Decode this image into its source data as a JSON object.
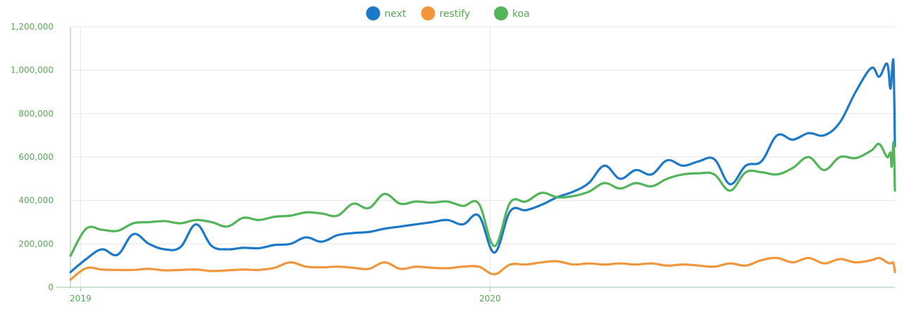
{
  "chart_data": {
    "type": "line",
    "title": "",
    "xlabel": "",
    "ylabel": "",
    "x_range": [
      "2018-12-23",
      "2020-12-27"
    ],
    "ylim": [
      0,
      1200000
    ],
    "y_ticks": [
      0,
      200000,
      400000,
      600000,
      800000,
      1000000,
      1200000
    ],
    "y_tick_labels": [
      "0",
      "200,000",
      "400,000",
      "600,000",
      "800,000",
      "1,000,000",
      "1,200,000"
    ],
    "x_ticks": [
      {
        "date": "2019-01-01",
        "label": "2019"
      },
      {
        "date": "2020-01-01",
        "label": "2020"
      }
    ],
    "grid": true,
    "legend_position": "top-center",
    "series": [
      {
        "name": "next",
        "color": "#1e78c8",
        "points": [
          [
            "2018-12-23",
            70000
          ],
          [
            "2019-01-06",
            130000
          ],
          [
            "2019-01-20",
            175000
          ],
          [
            "2019-02-03",
            150000
          ],
          [
            "2019-02-17",
            245000
          ],
          [
            "2019-03-03",
            200000
          ],
          [
            "2019-03-17",
            175000
          ],
          [
            "2019-03-31",
            185000
          ],
          [
            "2019-04-14",
            290000
          ],
          [
            "2019-04-28",
            190000
          ],
          [
            "2019-05-12",
            175000
          ],
          [
            "2019-05-26",
            182000
          ],
          [
            "2019-06-09",
            180000
          ],
          [
            "2019-06-23",
            195000
          ],
          [
            "2019-07-07",
            200000
          ],
          [
            "2019-07-21",
            230000
          ],
          [
            "2019-08-04",
            210000
          ],
          [
            "2019-08-18",
            240000
          ],
          [
            "2019-09-01",
            250000
          ],
          [
            "2019-09-15",
            255000
          ],
          [
            "2019-09-29",
            270000
          ],
          [
            "2019-10-13",
            280000
          ],
          [
            "2019-10-27",
            290000
          ],
          [
            "2019-11-10",
            300000
          ],
          [
            "2019-11-24",
            310000
          ],
          [
            "2019-12-08",
            290000
          ],
          [
            "2019-12-22",
            330000
          ],
          [
            "2020-01-05",
            160000
          ],
          [
            "2020-01-19",
            350000
          ],
          [
            "2020-02-02",
            355000
          ],
          [
            "2020-02-16",
            380000
          ],
          [
            "2020-03-01",
            415000
          ],
          [
            "2020-03-15",
            440000
          ],
          [
            "2020-03-29",
            480000
          ],
          [
            "2020-04-12",
            560000
          ],
          [
            "2020-04-26",
            500000
          ],
          [
            "2020-05-10",
            540000
          ],
          [
            "2020-05-24",
            520000
          ],
          [
            "2020-06-07",
            585000
          ],
          [
            "2020-06-21",
            560000
          ],
          [
            "2020-07-05",
            580000
          ],
          [
            "2020-07-19",
            590000
          ],
          [
            "2020-08-02",
            475000
          ],
          [
            "2020-08-16",
            560000
          ],
          [
            "2020-08-30",
            580000
          ],
          [
            "2020-09-13",
            700000
          ],
          [
            "2020-09-27",
            680000
          ],
          [
            "2020-10-11",
            710000
          ],
          [
            "2020-10-25",
            700000
          ],
          [
            "2020-11-08",
            760000
          ],
          [
            "2020-11-22",
            900000
          ],
          [
            "2020-12-06",
            1010000
          ],
          [
            "2020-12-13",
            970000
          ],
          [
            "2020-12-20",
            1030000
          ],
          [
            "2020-12-23",
            915000
          ],
          [
            "2020-12-25",
            1035000
          ],
          [
            "2020-12-26",
            1000000
          ],
          [
            "2020-12-27",
            650000
          ]
        ]
      },
      {
        "name": "restify",
        "color": "#f0963c",
        "points": [
          [
            "2018-12-23",
            35000
          ],
          [
            "2019-01-06",
            88000
          ],
          [
            "2019-01-20",
            82000
          ],
          [
            "2019-02-03",
            80000
          ],
          [
            "2019-02-17",
            80000
          ],
          [
            "2019-03-03",
            85000
          ],
          [
            "2019-03-17",
            78000
          ],
          [
            "2019-03-31",
            80000
          ],
          [
            "2019-04-14",
            82000
          ],
          [
            "2019-04-28",
            75000
          ],
          [
            "2019-05-12",
            78000
          ],
          [
            "2019-05-26",
            82000
          ],
          [
            "2019-06-09",
            80000
          ],
          [
            "2019-06-23",
            90000
          ],
          [
            "2019-07-07",
            115000
          ],
          [
            "2019-07-21",
            95000
          ],
          [
            "2019-08-04",
            92000
          ],
          [
            "2019-08-18",
            95000
          ],
          [
            "2019-09-01",
            90000
          ],
          [
            "2019-09-15",
            85000
          ],
          [
            "2019-09-29",
            115000
          ],
          [
            "2019-10-13",
            85000
          ],
          [
            "2019-10-27",
            95000
          ],
          [
            "2019-11-10",
            90000
          ],
          [
            "2019-11-24",
            88000
          ],
          [
            "2019-12-08",
            95000
          ],
          [
            "2019-12-22",
            95000
          ],
          [
            "2020-01-05",
            60000
          ],
          [
            "2020-01-19",
            105000
          ],
          [
            "2020-02-02",
            105000
          ],
          [
            "2020-02-16",
            115000
          ],
          [
            "2020-03-01",
            120000
          ],
          [
            "2020-03-15",
            105000
          ],
          [
            "2020-03-29",
            110000
          ],
          [
            "2020-04-12",
            105000
          ],
          [
            "2020-04-26",
            110000
          ],
          [
            "2020-05-10",
            105000
          ],
          [
            "2020-05-24",
            110000
          ],
          [
            "2020-06-07",
            100000
          ],
          [
            "2020-06-21",
            105000
          ],
          [
            "2020-07-05",
            100000
          ],
          [
            "2020-07-19",
            95000
          ],
          [
            "2020-08-02",
            110000
          ],
          [
            "2020-08-16",
            100000
          ],
          [
            "2020-08-30",
            125000
          ],
          [
            "2020-09-13",
            135000
          ],
          [
            "2020-09-27",
            115000
          ],
          [
            "2020-10-11",
            135000
          ],
          [
            "2020-10-25",
            110000
          ],
          [
            "2020-11-08",
            130000
          ],
          [
            "2020-11-22",
            115000
          ],
          [
            "2020-12-06",
            125000
          ],
          [
            "2020-12-13",
            135000
          ],
          [
            "2020-12-20",
            115000
          ],
          [
            "2020-12-23",
            110000
          ],
          [
            "2020-12-25",
            115000
          ],
          [
            "2020-12-26",
            105000
          ],
          [
            "2020-12-27",
            70000
          ]
        ]
      },
      {
        "name": "koa",
        "color": "#54b45a",
        "points": [
          [
            "2018-12-23",
            145000
          ],
          [
            "2019-01-06",
            270000
          ],
          [
            "2019-01-20",
            265000
          ],
          [
            "2019-02-03",
            260000
          ],
          [
            "2019-02-17",
            295000
          ],
          [
            "2019-03-03",
            300000
          ],
          [
            "2019-03-17",
            305000
          ],
          [
            "2019-03-31",
            295000
          ],
          [
            "2019-04-14",
            310000
          ],
          [
            "2019-04-28",
            300000
          ],
          [
            "2019-05-12",
            280000
          ],
          [
            "2019-05-26",
            320000
          ],
          [
            "2019-06-09",
            310000
          ],
          [
            "2019-06-23",
            325000
          ],
          [
            "2019-07-07",
            330000
          ],
          [
            "2019-07-21",
            345000
          ],
          [
            "2019-08-04",
            340000
          ],
          [
            "2019-08-18",
            330000
          ],
          [
            "2019-09-01",
            385000
          ],
          [
            "2019-09-15",
            365000
          ],
          [
            "2019-09-29",
            430000
          ],
          [
            "2019-10-13",
            385000
          ],
          [
            "2019-10-27",
            395000
          ],
          [
            "2019-11-10",
            390000
          ],
          [
            "2019-11-24",
            395000
          ],
          [
            "2019-12-08",
            375000
          ],
          [
            "2019-12-22",
            385000
          ],
          [
            "2020-01-05",
            190000
          ],
          [
            "2020-01-19",
            390000
          ],
          [
            "2020-02-02",
            395000
          ],
          [
            "2020-02-16",
            435000
          ],
          [
            "2020-03-01",
            415000
          ],
          [
            "2020-03-15",
            420000
          ],
          [
            "2020-03-29",
            440000
          ],
          [
            "2020-04-12",
            480000
          ],
          [
            "2020-04-26",
            455000
          ],
          [
            "2020-05-10",
            480000
          ],
          [
            "2020-05-24",
            465000
          ],
          [
            "2020-06-07",
            500000
          ],
          [
            "2020-06-21",
            520000
          ],
          [
            "2020-07-05",
            525000
          ],
          [
            "2020-07-19",
            520000
          ],
          [
            "2020-08-02",
            445000
          ],
          [
            "2020-08-16",
            530000
          ],
          [
            "2020-08-30",
            530000
          ],
          [
            "2020-09-13",
            520000
          ],
          [
            "2020-09-27",
            550000
          ],
          [
            "2020-10-11",
            600000
          ],
          [
            "2020-10-25",
            540000
          ],
          [
            "2020-11-08",
            600000
          ],
          [
            "2020-11-22",
            595000
          ],
          [
            "2020-12-06",
            630000
          ],
          [
            "2020-12-13",
            660000
          ],
          [
            "2020-12-20",
            600000
          ],
          [
            "2020-12-23",
            620000
          ],
          [
            "2020-12-24",
            555000
          ],
          [
            "2020-12-25",
            620000
          ],
          [
            "2020-12-26",
            660000
          ],
          [
            "2020-12-27",
            445000
          ]
        ]
      }
    ]
  }
}
